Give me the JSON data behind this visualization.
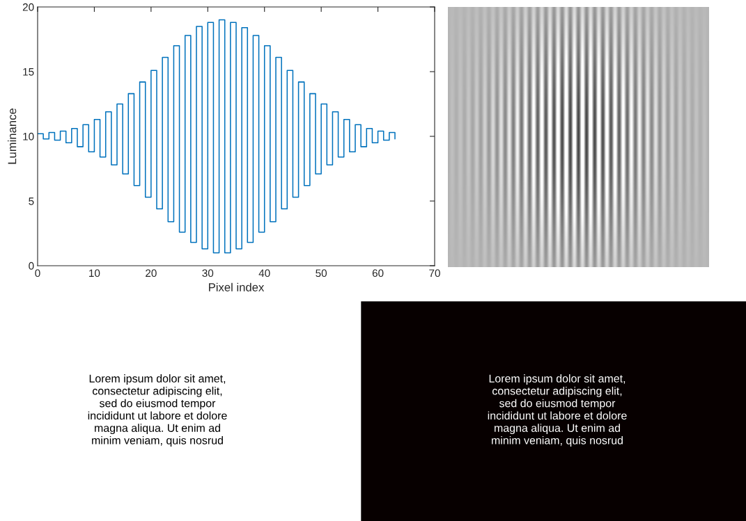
{
  "chart_data": {
    "type": "step",
    "xlabel": "Pixel index",
    "ylabel": "Luminance",
    "x": [
      0,
      1,
      2,
      3,
      4,
      5,
      6,
      7,
      8,
      9,
      10,
      11,
      12,
      13,
      14,
      15,
      16,
      17,
      18,
      19,
      20,
      21,
      22,
      23,
      24,
      25,
      26,
      27,
      28,
      29,
      30,
      31,
      32,
      33,
      34,
      35,
      36,
      37,
      38,
      39,
      40,
      41,
      42,
      43,
      44,
      45,
      46,
      47,
      48,
      49,
      50,
      51,
      52,
      53,
      54,
      55,
      56,
      57,
      58,
      59,
      60,
      61,
      62,
      63
    ],
    "series": [
      {
        "color": "#0072bd",
        "values": [
          10.2,
          9.8,
          10.3,
          9.7,
          10.4,
          9.5,
          10.6,
          9.2,
          10.9,
          8.8,
          11.3,
          8.4,
          11.9,
          7.8,
          12.5,
          7.1,
          13.3,
          6.2,
          14.2,
          5.3,
          15.1,
          4.4,
          16.1,
          3.4,
          17.0,
          2.6,
          17.8,
          1.8,
          18.5,
          1.3,
          18.8,
          1.0,
          19.0,
          1.0,
          18.8,
          1.3,
          18.4,
          1.8,
          17.8,
          2.6,
          17.0,
          3.4,
          16.1,
          4.4,
          15.1,
          5.3,
          14.2,
          6.2,
          13.3,
          7.1,
          12.5,
          7.8,
          11.9,
          8.4,
          11.3,
          8.8,
          10.9,
          9.2,
          10.6,
          9.5,
          10.4,
          9.7,
          10.3,
          9.8
        ]
      }
    ],
    "xlim": [
      0,
      70
    ],
    "xticks": [
      0,
      10,
      20,
      30,
      40,
      50,
      60,
      70
    ],
    "ylim": [
      0,
      20
    ],
    "yticks": [
      0,
      5,
      10,
      15,
      20
    ],
    "grid": false,
    "legend": false,
    "marker": "none",
    "line_style": "solid",
    "annotations": [
      "Lorem ipsum dolor sit amet,\nconsectetur adipiscing elit,\nsed do eiusmod tempor\nincididunt ut labore et dolore\nmagna aliqua. Ut enim ad\nminim veniam, quis nosrud",
      "Lorem ipsum dolor sit amet,\nconsectetur adipiscing elit,\nsed do eiusmod tempor\nincididunt ut labore et dolore\nmagna aliqua. Ut enim ad\nminim veniam, quis nosrud"
    ]
  }
}
